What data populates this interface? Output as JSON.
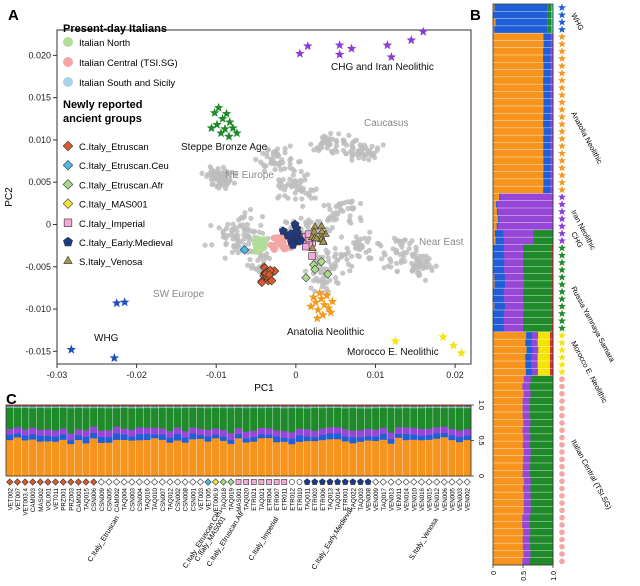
{
  "panels": {
    "A": "A",
    "B": "B",
    "C": "C"
  },
  "chart_data": [
    {
      "panel": "A",
      "type": "scatter",
      "xlabel": "PC1",
      "ylabel": "PC2",
      "xlim": [
        -0.03,
        0.022
      ],
      "ylim": [
        -0.0165,
        0.023
      ],
      "xticks": [
        "-0.03",
        "-0.02",
        "-0.01",
        "0",
        "0.01",
        "0.02"
      ],
      "xtick_values": [
        -0.03,
        -0.02,
        -0.01,
        0,
        0.01,
        0.02
      ],
      "yticks": [
        "0.020",
        "0.015",
        "0.010",
        "0.005",
        "0",
        "-0.005",
        "-0.010",
        "-0.015"
      ],
      "ytick_values": [
        0.02,
        0.015,
        0.01,
        0.005,
        0,
        -0.005,
        -0.01,
        -0.015
      ],
      "legend": {
        "present_title": "Present-day Italians",
        "present": [
          {
            "label": "Italian North",
            "color": "#b2dd98"
          },
          {
            "label": "Italian Central (TSI.SG)",
            "color": "#f4a6a6"
          },
          {
            "label": "Italian South and Sicily",
            "color": "#a9d3e6"
          }
        ],
        "ancient_title_1": "Newly reported",
        "ancient_title_2": "ancient groups",
        "ancient": [
          {
            "label": "C.Italy_Etruscan",
            "color": "#d95b2b",
            "marker": "diamond"
          },
          {
            "label": "C.Italy_Etruscan.Ceu",
            "color": "#4fb7e4",
            "marker": "diamond"
          },
          {
            "label": "C.Italy_Etruscan.Afr",
            "color": "#a7db8b",
            "marker": "diamond"
          },
          {
            "label": "C.Italy_MAS001",
            "color": "#f0e53c",
            "marker": "diamond"
          },
          {
            "label": "C.Italy_Imperial",
            "color": "#f3a9d4",
            "marker": "square"
          },
          {
            "label": "C.Italy_Early.Medieval",
            "color": "#1c3a8a",
            "marker": "pentagon"
          },
          {
            "label": "S.Italy_Venosa",
            "color": "#a99a4a",
            "marker": "triangle"
          }
        ]
      },
      "region_labels": {
        "ne_europe": "NE Europe",
        "sw_europe": "SW Europe",
        "caucasus": "Caucasus",
        "near_east": "Near East",
        "chg_iran": "CHG and Iran Neolithic",
        "steppe": "Steppe Bronze Age",
        "anatolia": "Anatolia Neolithic",
        "morocco": "Morocco E. Neolithic",
        "whg": "WHG"
      },
      "groups": {
        "whg": {
          "color": "#1f4fbf",
          "points": [
            [
              -0.0225,
              -0.0093
            ],
            [
              -0.0215,
              -0.0092
            ],
            [
              -0.0282,
              -0.0148
            ],
            [
              -0.0228,
              -0.0158
            ]
          ]
        },
        "chg_iran": {
          "color": "#8b3cd6",
          "points": [
            [
              0.0005,
              0.0202
            ],
            [
              0.0015,
              0.0211
            ],
            [
              0.0055,
              0.0201
            ],
            [
              0.007,
              0.0208
            ],
            [
              0.0115,
              0.0212
            ],
            [
              0.012,
              0.0198
            ],
            [
              0.0145,
              0.0218
            ],
            [
              0.016,
              0.0228
            ],
            [
              0.0055,
              0.0212
            ]
          ]
        },
        "steppe": {
          "color": "#1f8a2a",
          "points": [
            [
              -0.0102,
              0.0132
            ],
            [
              -0.0097,
              0.0138
            ],
            [
              -0.0092,
              0.0125
            ],
            [
              -0.0087,
              0.0131
            ],
            [
              -0.0099,
              0.0118
            ],
            [
              -0.0089,
              0.0113
            ],
            [
              -0.0083,
              0.0121
            ],
            [
              -0.0094,
              0.0108
            ],
            [
              -0.0079,
              0.0114
            ],
            [
              -0.0106,
              0.0114
            ],
            [
              -0.0084,
              0.0104
            ],
            [
              -0.0074,
              0.0108
            ]
          ]
        },
        "anatolia": {
          "color": "#f39a1e",
          "points": [
            [
              0.0025,
              -0.0092
            ],
            [
              0.0032,
              -0.0088
            ],
            [
              0.0036,
              -0.0095
            ],
            [
              0.0028,
              -0.0101
            ],
            [
              0.0041,
              -0.0099
            ],
            [
              0.0022,
              -0.0086
            ],
            [
              0.0034,
              -0.0107
            ],
            [
              0.0046,
              -0.0091
            ],
            [
              0.003,
              -0.0081
            ],
            [
              0.0039,
              -0.0084
            ],
            [
              0.0019,
              -0.0097
            ],
            [
              0.0044,
              -0.0104
            ],
            [
              0.0027,
              -0.0111
            ]
          ]
        },
        "morocco": {
          "color": "#f5e400",
          "points": [
            [
              0.0125,
              -0.0138
            ],
            [
              0.0185,
              -0.0133
            ],
            [
              0.0198,
              -0.0143
            ],
            [
              0.0208,
              -0.0152
            ]
          ]
        }
      }
    },
    {
      "panel": "B",
      "type": "bar",
      "orientation": "horizontal",
      "stacked": true,
      "components": [
        "orange",
        "blue",
        "purple",
        "green",
        "yellow",
        "cyan",
        "red"
      ],
      "component_colors": [
        "#f7941d",
        "#1f5ed6",
        "#9747d8",
        "#1f8a2a",
        "#f5e400",
        "#3fd6c7",
        "#d0312d"
      ],
      "xticks": [
        "0",
        "0.5",
        "1.0"
      ],
      "xtick_values": [
        0,
        0.5,
        1.0
      ],
      "group_labels": [
        {
          "label": "WHG",
          "row": 1.5
        },
        {
          "label": "Anatolia Neolithic",
          "row": 15
        },
        {
          "label": "Iran Neolithic",
          "row": 28.5
        },
        {
          "label": "CHG",
          "row": 31.5
        },
        {
          "label": "Russia Yamnaya Samara",
          "row": 39
        },
        {
          "label": "Morocco E. Neolithic",
          "row": 46.5
        },
        {
          "label": "Italian Central (TSI.SG)",
          "row": 60
        }
      ],
      "row_groups": [
        {
          "name": "WHG",
          "rows": 4,
          "star": "#1f5ed6",
          "values": [
            0.02,
            0.88,
            0.01,
            0.06,
            0.0,
            0.03,
            0.0
          ]
        },
        {
          "name": "Anatolia Neolithic",
          "rows": 22,
          "star": "#f39a1e",
          "values": [
            0.84,
            0.12,
            0.04,
            0.0,
            0.0,
            0.0,
            0.0
          ]
        },
        {
          "name": "Iran Neolithic",
          "rows": 5,
          "star": "#8b3cd6",
          "values": [
            0.08,
            0.02,
            0.9,
            0.0,
            0.0,
            0.0,
            0.0
          ]
        },
        {
          "name": "CHG",
          "rows": 2,
          "star": "#8b3cd6",
          "values": [
            0.03,
            0.14,
            0.5,
            0.33,
            0.0,
            0.0,
            0.0
          ]
        },
        {
          "name": "Russia Yamnaya Samara",
          "rows": 12,
          "star": "#1f8a2a",
          "values": [
            0.0,
            0.18,
            0.32,
            0.48,
            0.0,
            0.0,
            0.02
          ]
        },
        {
          "name": "Morocco E. Neolithic",
          "rows": 6,
          "star": "#f5e400",
          "values": [
            0.55,
            0.1,
            0.1,
            0.0,
            0.2,
            0.0,
            0.05
          ]
        },
        {
          "name": "Italian Central (TSI.SG)",
          "rows": 26,
          "star": "#f4a6a6",
          "values": [
            0.5,
            0.0,
            0.12,
            0.38,
            0.0,
            0.0,
            0.0
          ]
        }
      ]
    },
    {
      "panel": "C",
      "type": "bar",
      "stacked": true,
      "components": [
        "orange",
        "blue",
        "purple",
        "green",
        "yellow",
        "cyan",
        "red"
      ],
      "component_colors": [
        "#f7941d",
        "#1f5ed6",
        "#9747d8",
        "#1f8a2a",
        "#f5e400",
        "#3fd6c7",
        "#d0312d"
      ],
      "yticks": [
        "0",
        "0.5",
        "1.0"
      ],
      "ytick_values": [
        0,
        0.5,
        1.0
      ],
      "samples": [
        "VET002",
        "VET007",
        "VET003.4",
        "CAM003",
        "MAS002",
        "VOL001",
        "VET011",
        "PRZ001",
        "PRZ003",
        "CAM001",
        "TAQ015",
        "CSN006",
        "CSN009",
        "CSN005",
        "CAM002",
        "TAQ004",
        "CSN003",
        "CSN004",
        "TAQ016",
        "TAQ010",
        "CSN007",
        "TAQ012",
        "CSN002",
        "CSN008",
        "CSN001",
        "VET003",
        "VET005",
        "VET009.9",
        "TAQ018",
        "TAQ019",
        "MAS001",
        "TAQ020",
        "ETR021",
        "TAQ021",
        "ETR004",
        "ETR007",
        "ETR011",
        "ETR012",
        "ETR010",
        "TAQ011",
        "ETR003",
        "ETR006",
        "TAQ013",
        "TAQ014",
        "ETR001",
        "TAQ022",
        "TAQ003",
        "VEN008",
        "VEN009",
        "TAQ017",
        "VEN013",
        "VEN011",
        "VEN014",
        "VEN010",
        "VEN016",
        "VEN015",
        "VEN012",
        "VEN006",
        "VEN005",
        "VEN003",
        "VEN002"
      ],
      "group_labels": [
        {
          "label": "C.Italy_Etruscan",
          "start": 0,
          "end": 24
        },
        {
          "label": "C.Italy_Etruscan.Ceu",
          "start": 25,
          "end": 25
        },
        {
          "label": "C.Italy_MAS001",
          "start": 26,
          "end": 26
        },
        {
          "label": "C.Italy_Etruscan.Afr",
          "start": 27,
          "end": 29
        },
        {
          "label": "C.Italy_Imperial",
          "start": 30,
          "end": 36
        },
        {
          "label": "C.Italy_Early.Medieval",
          "start": 37,
          "end": 47
        },
        {
          "label": "S.Italy_Venosa",
          "start": 48,
          "end": 60
        }
      ],
      "marker_groups": [
        {
          "start": 0,
          "end": 11,
          "marker": "diamond",
          "color": "#d95b2b"
        },
        {
          "start": 12,
          "end": 25,
          "marker": "diamond",
          "color": "#ffffff"
        },
        {
          "start": 26,
          "end": 26,
          "marker": "diamond",
          "color": "#4fb7e4"
        },
        {
          "start": 27,
          "end": 27,
          "marker": "diamond",
          "color": "#f0e53c"
        },
        {
          "start": 28,
          "end": 29,
          "marker": "diamond",
          "color": "#a7db8b"
        },
        {
          "start": 30,
          "end": 36,
          "marker": "square",
          "color": "#f3a9d4"
        },
        {
          "start": 37,
          "end": 38,
          "marker": "circle",
          "color": "#ffffff"
        },
        {
          "start": 39,
          "end": 47,
          "marker": "pentagon",
          "color": "#1c3a8a"
        },
        {
          "start": 48,
          "end": 60,
          "marker": "diamond",
          "color": "#ffffff"
        }
      ],
      "typical_values": [
        0.5,
        0.07,
        0.09,
        0.3,
        0.0,
        0.02,
        0.02
      ]
    }
  ]
}
